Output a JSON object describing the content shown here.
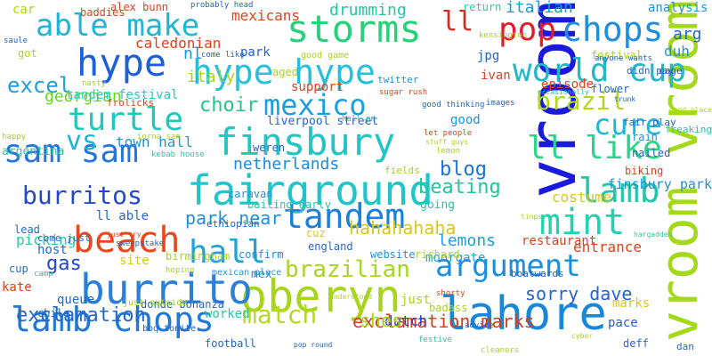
{
  "words": [
    {
      "text": "vroom",
      "color": "#1a1adc",
      "vertical": true
    },
    {
      "text": "vroom vroom",
      "color": "#a4d81b",
      "vertical": true
    },
    {
      "text": "lahore",
      "color": "#1687d9"
    },
    {
      "text": "oberyn",
      "color": "#a6d51d"
    },
    {
      "text": "burrito",
      "color": "#2a7fd8"
    },
    {
      "text": "lamb chops",
      "color": "#1f79d6"
    },
    {
      "text": "fairground",
      "color": "#21c5c9"
    },
    {
      "text": "tandem",
      "color": "#1b7fe0"
    },
    {
      "text": "beach",
      "color": "#e8481b"
    },
    {
      "text": "finsbury",
      "color": "#22c4c4"
    },
    {
      "text": "sam sam",
      "color": "#2475dd"
    },
    {
      "text": "hype hype",
      "color": "#27c0dc"
    },
    {
      "text": "storms",
      "color": "#28d07a"
    },
    {
      "text": "pop",
      "color": "#e21c2a"
    },
    {
      "text": "chops",
      "color": "#1f8ede"
    },
    {
      "text": "world cup",
      "color": "#22b8c8"
    },
    {
      "text": "lamb",
      "color": "#22c5a8"
    },
    {
      "text": "mint",
      "color": "#22d2b0"
    },
    {
      "text": "hall",
      "color": "#1fa3d2"
    },
    {
      "text": "argument",
      "color": "#1a8fdf"
    },
    {
      "text": "burritos",
      "color": "#2448cc"
    },
    {
      "text": "ll like",
      "color": "#2ad48a"
    },
    {
      "text": "turtle",
      "color": "#1ccabb"
    },
    {
      "text": "mexico",
      "color": "#1a9ede"
    },
    {
      "text": "able make",
      "color": "#1fb4d8"
    },
    {
      "text": "hype",
      "color": "#1d5fd8"
    },
    {
      "text": "brazilian",
      "color": "#a5d71d"
    },
    {
      "text": "exclamation",
      "color": "#2467c9"
    },
    {
      "text": "match",
      "color": "#bbd71c"
    },
    {
      "text": "exclamation marks",
      "color": "#d93a1c"
    },
    {
      "text": "cure",
      "color": "#1ab8d6"
    },
    {
      "text": "brazil",
      "color": "#b3d61b"
    },
    {
      "text": "vs",
      "color": "#1fb3d6"
    },
    {
      "text": "excel",
      "color": "#1f9ed8"
    },
    {
      "text": "beating",
      "color": "#20c69d"
    },
    {
      "text": "blog",
      "color": "#1b73d8"
    },
    {
      "text": "choir",
      "color": "#28c486"
    },
    {
      "text": "netherlands",
      "color": "#1b8ae0"
    },
    {
      "text": "ll",
      "color": "#d32c1c"
    },
    {
      "text": "hahahahaha",
      "color": "#d6c81b"
    },
    {
      "text": "sorry dave",
      "color": "#2064d8"
    },
    {
      "text": "georgian",
      "color": "#68d620"
    },
    {
      "text": "italian",
      "color": "#1a97d8"
    },
    {
      "text": "italy",
      "color": "#a7d41d"
    },
    {
      "text": "lemons",
      "color": "#1c9edb"
    },
    {
      "text": "moorgate",
      "color": "#20a3d4"
    },
    {
      "text": "entrance",
      "color": "#e0421b"
    },
    {
      "text": "tandem festival",
      "color": "#27c7c4"
    },
    {
      "text": "park near",
      "color": "#1f90db"
    },
    {
      "text": "town hall",
      "color": "#1a96dc"
    },
    {
      "text": "finsbury park",
      "color": "#1e8fd9"
    },
    {
      "text": "gas",
      "color": "#2246d4"
    },
    {
      "text": "dutch",
      "color": "#2547c8"
    },
    {
      "text": "drumming",
      "color": "#27c7a1"
    },
    {
      "text": "support",
      "color": "#e0421b"
    },
    {
      "text": "mexicans",
      "color": "#e0421b"
    },
    {
      "text": "caledonian",
      "color": "#e0421b"
    },
    {
      "text": "kate",
      "color": "#e0421b"
    },
    {
      "text": "shes",
      "color": "#a5d61c"
    },
    {
      "text": "costume",
      "color": "#d6c81b"
    },
    {
      "text": "restaurant",
      "color": "#e0421b"
    },
    {
      "text": "liverpool street",
      "color": "#2462d0"
    },
    {
      "text": "arg",
      "color": "#2467c9"
    },
    {
      "text": "analysis",
      "color": "#1f90db"
    },
    {
      "text": "duh",
      "color": "#1f90db"
    },
    {
      "text": "picking",
      "color": "#27c7a1"
    },
    {
      "text": "episode",
      "color": "#e0421b"
    },
    {
      "text": "park",
      "color": "#2462d0"
    },
    {
      "text": "nl",
      "color": "#1a96dc"
    },
    {
      "text": "jpg",
      "color": "#2462d0"
    },
    {
      "text": "ivan",
      "color": "#e0421b"
    },
    {
      "text": "birmingham",
      "color": "#a7d41d"
    },
    {
      "text": "football",
      "color": "#2467c9"
    },
    {
      "text": "worked",
      "color": "#27c7a1"
    },
    {
      "text": "pace",
      "color": "#2462d0"
    },
    {
      "text": "good",
      "color": "#1f90db"
    },
    {
      "text": "site",
      "color": "#d6c81b"
    },
    {
      "text": "fields",
      "color": "#a7d41d"
    },
    {
      "text": "rain",
      "color": "#1f90db"
    },
    {
      "text": "mex",
      "color": "#1f90db"
    },
    {
      "text": "host",
      "color": "#2467c9"
    },
    {
      "text": "cuz",
      "color": "#d6c81b"
    },
    {
      "text": "ll able",
      "color": "#2467c9"
    },
    {
      "text": "england",
      "color": "#2467c9"
    },
    {
      "text": "website",
      "color": "#1f90db"
    },
    {
      "text": "richard",
      "color": "#a7d41d"
    },
    {
      "text": "confirm",
      "color": "#1f90db"
    },
    {
      "text": "argentina",
      "color": "#27c7a1"
    },
    {
      "text": "alex bunn",
      "color": "#e0421b"
    },
    {
      "text": "got",
      "color": "#a7d41d"
    },
    {
      "text": "car",
      "color": "#a7d41d"
    },
    {
      "text": "queue",
      "color": "#2467c9"
    },
    {
      "text": "chile",
      "color": "#2467c9"
    },
    {
      "text": "cup",
      "color": "#2467c9"
    },
    {
      "text": "marks",
      "color": "#d6c81b"
    },
    {
      "text": "just",
      "color": "#a7d41d"
    },
    {
      "text": "aged",
      "color": "#a7d41d"
    },
    {
      "text": "weren",
      "color": "#2462d0"
    },
    {
      "text": "caravan",
      "color": "#1f90db"
    },
    {
      "text": "mexican place",
      "color": "#1f90db"
    },
    {
      "text": "bailing early",
      "color": "#27c7a1"
    },
    {
      "text": "ethiopian",
      "color": "#2462d0"
    },
    {
      "text": "come just",
      "color": "#2467c9"
    },
    {
      "text": "good game",
      "color": "#a7d41d"
    },
    {
      "text": "twitter",
      "color": "#1f90db"
    },
    {
      "text": "return",
      "color": "#27c7a1"
    },
    {
      "text": "festival",
      "color": "#a7d41d"
    },
    {
      "text": "didn pay",
      "color": "#2462d0"
    },
    {
      "text": "cage",
      "color": "#2462d0"
    },
    {
      "text": "boatwards",
      "color": "#2462d0"
    },
    {
      "text": "badass",
      "color": "#a7d41d"
    },
    {
      "text": "deff",
      "color": "#2467c9"
    },
    {
      "text": "dan",
      "color": "#2467c9"
    },
    {
      "text": "flower",
      "color": "#2462d0"
    },
    {
      "text": "nailed",
      "color": "#2462d0"
    },
    {
      "text": "biking",
      "color": "#e0421b"
    },
    {
      "text": "fair play",
      "color": "#2462d0"
    },
    {
      "text": "freaking",
      "color": "#27c7a1"
    },
    {
      "text": "going",
      "color": "#27c7a1"
    },
    {
      "text": "bbq tonite",
      "color": "#2462d0"
    },
    {
      "text": "donde bonanza",
      "color": "#2467c9"
    },
    {
      "text": "just outside",
      "color": "#a7d41d"
    },
    {
      "text": "baddies",
      "color": "#e0421b"
    },
    {
      "text": "frolicks",
      "color": "#e0421b"
    },
    {
      "text": "iorna sam",
      "color": "#a7d41d"
    },
    {
      "text": "kebab house",
      "color": "#27c7a1"
    },
    {
      "text": "sugar rush",
      "color": "#e0421b"
    },
    {
      "text": "sweepstake",
      "color": "#2462d0"
    },
    {
      "text": "cleaners",
      "color": "#a7d41d"
    },
    {
      "text": "pop round",
      "color": "#2462d0"
    },
    {
      "text": "shorty",
      "color": "#e0421b"
    },
    {
      "text": "lead",
      "color": "#2467c9"
    },
    {
      "text": "camp",
      "color": "#27c7a1"
    },
    {
      "text": "lemon",
      "color": "#a7d41d"
    },
    {
      "text": "festive",
      "color": "#27c7a1"
    },
    {
      "text": "cyber",
      "color": "#a7d41d"
    },
    {
      "text": "advice",
      "color": "#2462d0"
    },
    {
      "text": "let people",
      "color": "#e0421b"
    },
    {
      "text": "stuff guys",
      "color": "#a7d41d"
    },
    {
      "text": "anyone wants",
      "color": "#2462d0"
    },
    {
      "text": "probably head",
      "color": "#2462d0"
    },
    {
      "text": "kensington",
      "color": "#a7d41d"
    },
    {
      "text": "saule",
      "color": "#2462d0"
    },
    {
      "text": "happy",
      "color": "#a7d41d"
    },
    {
      "text": "good thinking",
      "color": "#2467c9"
    },
    {
      "text": "hall pm",
      "color": "#27c7a1"
    },
    {
      "text": "tinps",
      "color": "#a7d41d"
    },
    {
      "text": "occasionally",
      "color": "#27c7a1"
    },
    {
      "text": "images",
      "color": "#2462d0"
    },
    {
      "text": "hoping",
      "color": "#a7d41d"
    },
    {
      "text": "just try",
      "color": "#e0421b"
    },
    {
      "text": "understood",
      "color": "#a7d41d"
    },
    {
      "text": "come like",
      "color": "#2462d0"
    },
    {
      "text": "nasty",
      "color": "#a7d41d"
    },
    {
      "text": "good place",
      "color": "#a7d41d"
    },
    {
      "text": "trunk",
      "color": "#2462d0"
    },
    {
      "text": "hargadden",
      "color": "#27c7a1"
    },
    {
      "text": "ordering",
      "color": "#2462d0"
    }
  ]
}
